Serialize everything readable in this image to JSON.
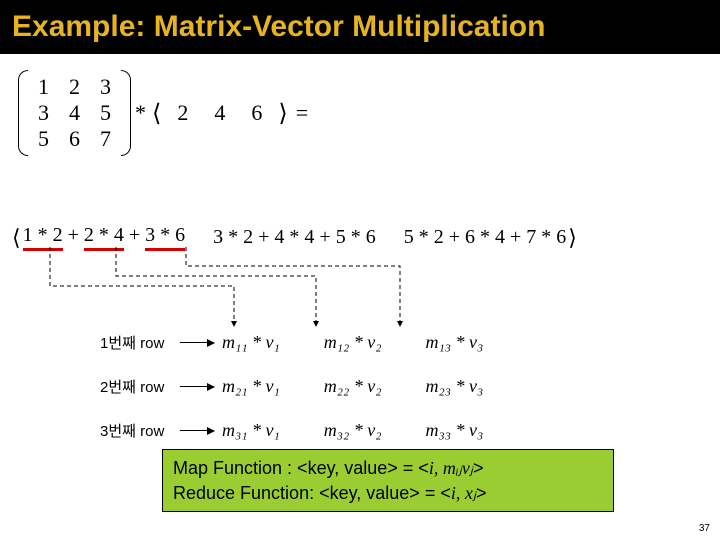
{
  "title": "Example: Matrix-Vector Multiplication",
  "colors": {
    "title_bg": "#000000",
    "title_fg": "#e6b422",
    "underline": "#d40000",
    "green_box_bg": "#9acd32",
    "green_box_border": "#000000",
    "page_bg": "#ffffff",
    "text": "#000000"
  },
  "matrix": {
    "rows": [
      [
        "1",
        "2",
        "3"
      ],
      [
        "3",
        "4",
        "5"
      ],
      [
        "5",
        "6",
        "7"
      ]
    ]
  },
  "op_star": "*",
  "vector": [
    "2",
    "4",
    "6"
  ],
  "op_eq": "=",
  "result": {
    "entry1": {
      "t1": "1 * 2",
      "t2": "2 * 4",
      "t3": "3 * 6"
    },
    "entry2": "3 * 2 + 4 * 4 + 5 * 6",
    "entry3": "5 * 2 + 6 * 4 + 7 * 6",
    "plus": " + "
  },
  "legend": {
    "rows": [
      {
        "label": "1번째 row",
        "terms": [
          "m₁₁ * v₁",
          "m₁₂ * v₂",
          "m₁₃ * v₃"
        ]
      },
      {
        "label": "2번째 row",
        "terms": [
          "m₂₁ * v₁",
          "m₂₂ * v₂",
          "m₂₃ * v₃"
        ]
      },
      {
        "label": "3번째 row",
        "terms": [
          "m₃₁ * v₁",
          "m₃₂ * v₂",
          "m₃₃ * v₃"
        ]
      }
    ]
  },
  "green_box": {
    "line1_prefix": "Map Function : <key, value> = <",
    "line1_ital": "i, mᵢⱼvⱼ",
    "line1_suffix": ">",
    "line2_prefix": "Reduce Function: <key, value> = <",
    "line2_ital": "i, xⱼ",
    "line2_suffix": ">"
  },
  "page_number": "37",
  "dashed_arrows": {
    "stroke": "#000000",
    "stroke_width": 1,
    "dash": "4 3",
    "paths": [
      "M 50 193  L 50 232  L 234 232  L 234 273",
      "M 116 193 L 116 222 L 316 222 L 316 273",
      "M 186 193 L 186 212 L 400 212 L 400 273"
    ]
  }
}
